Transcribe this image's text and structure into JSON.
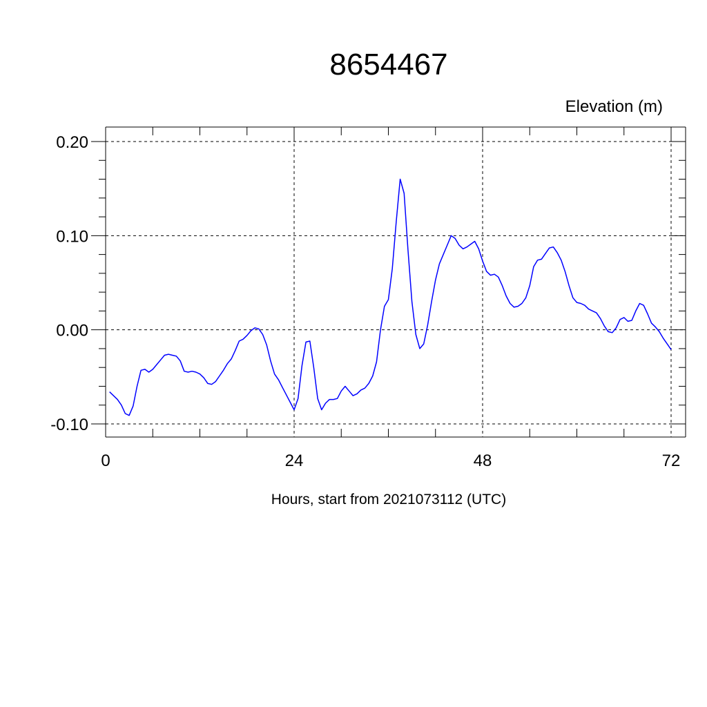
{
  "chart_data": {
    "type": "line",
    "title": "8654467",
    "ylabel": "Elevation (m)",
    "xlabel": "Hours, start from 2021073112 (UTC)",
    "xlim": [
      0,
      72
    ],
    "ylim": [
      -0.1,
      0.2
    ],
    "x_ticks": [
      {
        "value": 0,
        "label": "0"
      },
      {
        "value": 24,
        "label": "24"
      },
      {
        "value": 48,
        "label": "48"
      },
      {
        "value": 72,
        "label": "72"
      }
    ],
    "y_ticks": [
      {
        "value": -0.1,
        "label": "-0.10"
      },
      {
        "value": 0.0,
        "label": "0.00"
      },
      {
        "value": 0.1,
        "label": "0.10"
      },
      {
        "value": 0.2,
        "label": "0.20"
      }
    ],
    "grid": true,
    "line_color": "#0000ff",
    "series": [
      {
        "x": [
          0.5,
          1.0,
          1.5,
          2.0,
          2.5,
          3.0,
          3.5,
          4.0,
          4.5,
          5.0,
          5.5,
          6.0,
          6.5,
          7.0,
          7.5,
          8.0,
          8.5,
          9.0,
          9.5,
          10.0,
          10.5,
          11.0,
          11.5,
          12.0,
          12.5,
          13.0,
          13.5,
          14.0,
          14.5,
          15.0,
          15.5,
          16.0,
          16.5,
          17.0,
          17.5,
          18.0,
          18.5,
          19.0,
          19.5,
          20.0,
          20.5,
          21.0,
          21.5,
          22.0,
          22.5,
          23.0,
          23.5,
          24.0,
          24.5,
          25.0,
          25.5,
          26.0,
          26.5,
          27.0,
          27.5,
          28.0,
          28.5,
          29.0,
          29.5,
          30.0,
          30.5,
          31.0,
          31.5,
          32.0,
          32.5,
          33.0,
          33.5,
          34.0,
          34.5,
          35.0,
          35.5,
          36.0,
          36.5,
          37.0,
          37.5,
          38.0,
          38.5,
          39.0,
          39.5,
          40.0,
          40.5,
          41.0,
          41.5,
          42.0,
          42.5,
          43.0,
          43.5,
          44.0,
          44.5,
          45.0,
          45.5,
          46.0,
          46.5,
          47.0,
          47.5,
          48.0,
          48.5,
          49.0,
          49.5,
          50.0,
          50.5,
          51.0,
          51.5,
          52.0,
          52.5,
          53.0,
          53.5,
          54.0,
          54.5,
          55.0,
          55.5,
          56.0,
          56.5,
          57.0,
          57.5,
          58.0,
          58.5,
          59.0,
          59.5,
          60.0,
          60.5,
          61.0,
          61.5,
          62.0,
          62.5,
          63.0,
          63.5,
          64.0,
          64.5,
          65.0,
          65.5,
          66.0,
          66.5,
          67.0,
          67.5,
          68.0,
          68.5,
          69.0,
          69.5,
          70.0,
          70.5,
          71.0,
          71.5,
          72.0
        ],
        "y": [
          -0.066,
          -0.07,
          -0.074,
          -0.08,
          -0.089,
          -0.091,
          -0.081,
          -0.06,
          -0.043,
          -0.042,
          -0.045,
          -0.042,
          -0.037,
          -0.032,
          -0.027,
          -0.026,
          -0.027,
          -0.028,
          -0.033,
          -0.044,
          -0.045,
          -0.044,
          -0.045,
          -0.047,
          -0.051,
          -0.057,
          -0.058,
          -0.055,
          -0.049,
          -0.043,
          -0.036,
          -0.031,
          -0.022,
          -0.012,
          -0.01,
          -0.006,
          -0.001,
          0.002,
          0.001,
          -0.005,
          -0.016,
          -0.033,
          -0.047,
          -0.053,
          -0.061,
          -0.069,
          -0.077,
          -0.085,
          -0.073,
          -0.038,
          -0.013,
          -0.012,
          -0.04,
          -0.073,
          -0.085,
          -0.078,
          -0.074,
          -0.074,
          -0.073,
          -0.065,
          -0.06,
          -0.065,
          -0.07,
          -0.068,
          -0.064,
          -0.062,
          -0.057,
          -0.049,
          -0.034,
          0.0,
          0.025,
          0.032,
          0.065,
          0.115,
          0.16,
          0.145,
          0.085,
          0.03,
          -0.005,
          -0.02,
          -0.015,
          0.005,
          0.03,
          0.053,
          0.07,
          0.08,
          0.09,
          0.1,
          0.097,
          0.09,
          0.086,
          0.088,
          0.091,
          0.094,
          0.086,
          0.073,
          0.062,
          0.058,
          0.059,
          0.056,
          0.047,
          0.036,
          0.028,
          0.024,
          0.025,
          0.028,
          0.034,
          0.047,
          0.067,
          0.074,
          0.075,
          0.081,
          0.087,
          0.088,
          0.082,
          0.074,
          0.062,
          0.047,
          0.034,
          0.029,
          0.028,
          0.026,
          0.022,
          0.02,
          0.018,
          0.012,
          0.004,
          -0.002,
          -0.003,
          0.002,
          0.011,
          0.013,
          0.009,
          0.01,
          0.02,
          0.028,
          0.026,
          0.017,
          0.007,
          0.003,
          -0.002,
          -0.009,
          -0.015,
          -0.021
        ]
      }
    ]
  }
}
